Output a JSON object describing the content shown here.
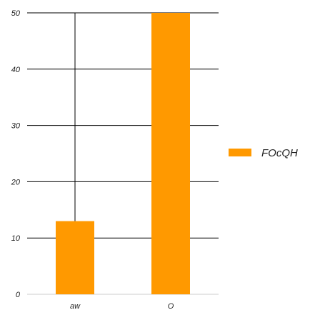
{
  "chart_data": {
    "type": "bar",
    "categories": [
      "aw",
      "O"
    ],
    "series": [
      {
        "name": "FOcQH",
        "values": [
          13,
          50
        ],
        "color": "#ff9900"
      }
    ],
    "title": "",
    "xlabel": "",
    "ylabel": "",
    "ylim": [
      0,
      50
    ],
    "yticks": [
      0,
      10,
      20,
      30,
      40,
      50
    ],
    "grid": true,
    "legend_position": "right"
  }
}
